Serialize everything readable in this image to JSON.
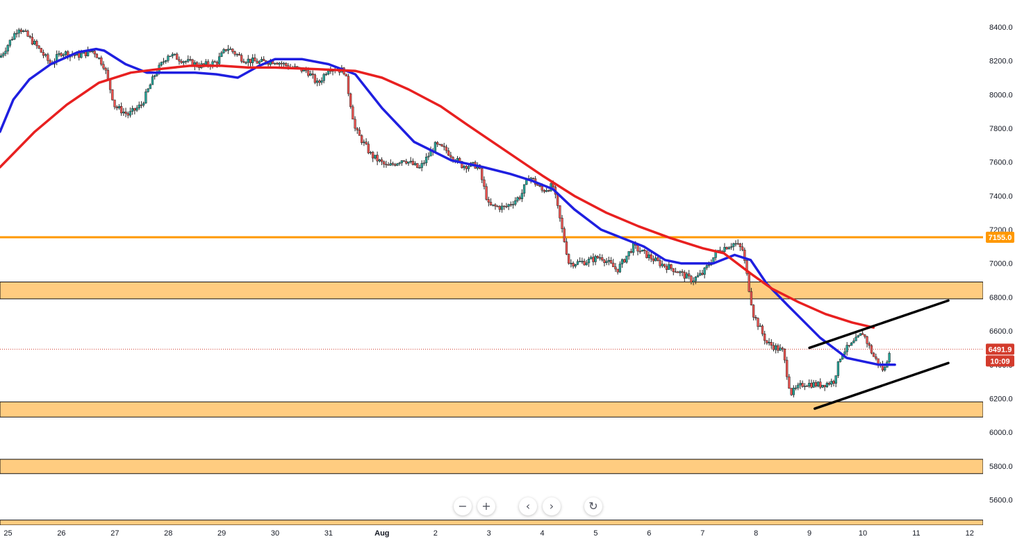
{
  "chart_data": {
    "type": "candlestick",
    "title": "",
    "ylim": [
      5450,
      8560
    ],
    "y_ticks": [
      "8400.0",
      "8200.0",
      "8000.0",
      "7800.0",
      "7600.0",
      "7400.0",
      "7200.0",
      "7000.0",
      "6800.0",
      "6600.0",
      "6400.0",
      "6200.0",
      "6000.0",
      "5800.0",
      "5600.0"
    ],
    "x_ticks": [
      "25",
      "26",
      "27",
      "28",
      "29",
      "30",
      "31",
      "Aug",
      "2",
      "3",
      "4",
      "5",
      "6",
      "7",
      "8",
      "9",
      "10",
      "11",
      "12"
    ],
    "x_tick_days": [
      25,
      26,
      27,
      28,
      29,
      30,
      31,
      32,
      33,
      34,
      35,
      36,
      37,
      38,
      39,
      40,
      41,
      42,
      43
    ],
    "x_range_days": [
      24.85,
      43.25
    ],
    "candle_anchors_day_price": [
      [
        24.85,
        8220
      ],
      [
        25.2,
        8400
      ],
      [
        25.5,
        8300
      ],
      [
        25.8,
        8180
      ],
      [
        26.0,
        8250
      ],
      [
        26.3,
        8230
      ],
      [
        26.6,
        8260
      ],
      [
        26.8,
        8170
      ],
      [
        27.0,
        7930
      ],
      [
        27.25,
        7880
      ],
      [
        27.5,
        7940
      ],
      [
        27.75,
        8120
      ],
      [
        28.0,
        8240
      ],
      [
        28.3,
        8200
      ],
      [
        28.6,
        8170
      ],
      [
        28.9,
        8190
      ],
      [
        29.1,
        8280
      ],
      [
        29.4,
        8210
      ],
      [
        29.7,
        8190
      ],
      [
        30.0,
        8200
      ],
      [
        30.3,
        8160
      ],
      [
        30.6,
        8140
      ],
      [
        30.8,
        8060
      ],
      [
        31.0,
        8160
      ],
      [
        31.3,
        8140
      ],
      [
        31.5,
        7790
      ],
      [
        31.8,
        7640
      ],
      [
        32.1,
        7570
      ],
      [
        32.4,
        7620
      ],
      [
        32.7,
        7560
      ],
      [
        33.0,
        7700
      ],
      [
        33.2,
        7670
      ],
      [
        33.5,
        7580
      ],
      [
        33.8,
        7580
      ],
      [
        34.0,
        7340
      ],
      [
        34.3,
        7330
      ],
      [
        34.6,
        7400
      ],
      [
        34.75,
        7520
      ],
      [
        35.0,
        7430
      ],
      [
        35.2,
        7460
      ],
      [
        35.5,
        7000
      ],
      [
        35.8,
        7010
      ],
      [
        36.1,
        7040
      ],
      [
        36.4,
        6960
      ],
      [
        36.7,
        7100
      ],
      [
        36.9,
        7060
      ],
      [
        37.2,
        7000
      ],
      [
        37.5,
        6960
      ],
      [
        37.8,
        6900
      ],
      [
        38.0,
        6940
      ],
      [
        38.3,
        7080
      ],
      [
        38.6,
        7120
      ],
      [
        38.75,
        7080
      ],
      [
        38.95,
        6700
      ],
      [
        39.2,
        6530
      ],
      [
        39.5,
        6480
      ],
      [
        39.65,
        6230
      ],
      [
        39.9,
        6290
      ],
      [
        40.2,
        6280
      ],
      [
        40.45,
        6300
      ],
      [
        40.6,
        6470
      ],
      [
        40.8,
        6520
      ],
      [
        41.0,
        6590
      ],
      [
        41.2,
        6450
      ],
      [
        41.4,
        6360
      ],
      [
        41.5,
        6491.9
      ]
    ],
    "series": [
      {
        "color": "#1f1fe0",
        "points": [
          [
            24.85,
            7780
          ],
          [
            25.1,
            7970
          ],
          [
            25.4,
            8090
          ],
          [
            25.8,
            8180
          ],
          [
            26.3,
            8250
          ],
          [
            26.65,
            8270
          ],
          [
            26.8,
            8260
          ],
          [
            27.2,
            8180
          ],
          [
            27.6,
            8130
          ],
          [
            28.0,
            8130
          ],
          [
            28.5,
            8130
          ],
          [
            28.9,
            8120
          ],
          [
            29.3,
            8100
          ],
          [
            29.7,
            8170
          ],
          [
            30.0,
            8210
          ],
          [
            30.5,
            8210
          ],
          [
            31.0,
            8180
          ],
          [
            31.5,
            8120
          ],
          [
            32.0,
            7920
          ],
          [
            32.6,
            7720
          ],
          [
            33.3,
            7610
          ],
          [
            33.9,
            7570
          ],
          [
            34.4,
            7530
          ],
          [
            34.8,
            7490
          ],
          [
            35.2,
            7440
          ],
          [
            35.6,
            7320
          ],
          [
            36.1,
            7200
          ],
          [
            36.5,
            7150
          ],
          [
            36.9,
            7100
          ],
          [
            37.3,
            7020
          ],
          [
            37.6,
            7000
          ],
          [
            38.2,
            7000
          ],
          [
            38.6,
            7050
          ],
          [
            38.9,
            7020
          ],
          [
            39.2,
            6880
          ],
          [
            39.6,
            6750
          ],
          [
            40.2,
            6560
          ],
          [
            40.7,
            6440
          ],
          [
            41.0,
            6420
          ],
          [
            41.3,
            6400
          ],
          [
            41.6,
            6400
          ]
        ]
      },
      {
        "color": "#e82020",
        "points": [
          [
            24.85,
            7570
          ],
          [
            25.5,
            7780
          ],
          [
            26.1,
            7940
          ],
          [
            26.7,
            8070
          ],
          [
            27.3,
            8130
          ],
          [
            27.8,
            8150
          ],
          [
            28.4,
            8170
          ],
          [
            29.0,
            8170
          ],
          [
            29.5,
            8160
          ],
          [
            30.0,
            8160
          ],
          [
            30.8,
            8150
          ],
          [
            31.5,
            8140
          ],
          [
            32.0,
            8100
          ],
          [
            32.5,
            8030
          ],
          [
            33.1,
            7930
          ],
          [
            33.6,
            7820
          ],
          [
            34.3,
            7670
          ],
          [
            35.0,
            7520
          ],
          [
            35.6,
            7400
          ],
          [
            36.2,
            7300
          ],
          [
            36.8,
            7220
          ],
          [
            37.4,
            7150
          ],
          [
            38.0,
            7090
          ],
          [
            38.4,
            7060
          ],
          [
            38.9,
            6940
          ],
          [
            39.3,
            6850
          ],
          [
            39.8,
            6770
          ],
          [
            40.3,
            6700
          ],
          [
            40.8,
            6650
          ],
          [
            41.2,
            6620
          ]
        ]
      }
    ],
    "trend_channel_lines": [
      {
        "from": [
          40.0,
          6500
        ],
        "to": [
          42.6,
          6780
        ]
      },
      {
        "from": [
          40.1,
          6140
        ],
        "to": [
          42.6,
          6410
        ]
      }
    ],
    "horizontal_lines": [
      {
        "price": 7155,
        "color": "#ff9800"
      },
      {
        "price": 6491.9,
        "color": "#d33b2c",
        "style": "dotted"
      }
    ],
    "zones": [
      {
        "from": 6790,
        "to": 6890
      },
      {
        "from": 6090,
        "to": 6180
      },
      {
        "from": 5755,
        "to": 5840
      },
      {
        "from": 5450,
        "to": 5480
      }
    ],
    "price_tags": [
      {
        "label": "7155.0",
        "price": 7155,
        "color": "#ff9800"
      },
      {
        "label": "6491.9",
        "price": 6491.9,
        "color": "#d33b2c"
      },
      {
        "label": "10:09",
        "price": 6400,
        "color": "#d33b2c"
      }
    ],
    "colors": {
      "up": "#26a69a",
      "down": "#ef5350",
      "wick": "#222222",
      "zone_fill": "#ffcc80",
      "zone_border": "#111111",
      "axis_text": "#131722"
    }
  },
  "toolbar": {
    "zoom_out": "−",
    "zoom_in": "+",
    "scroll_left": "‹",
    "scroll_right": "›",
    "reset": "↻"
  }
}
